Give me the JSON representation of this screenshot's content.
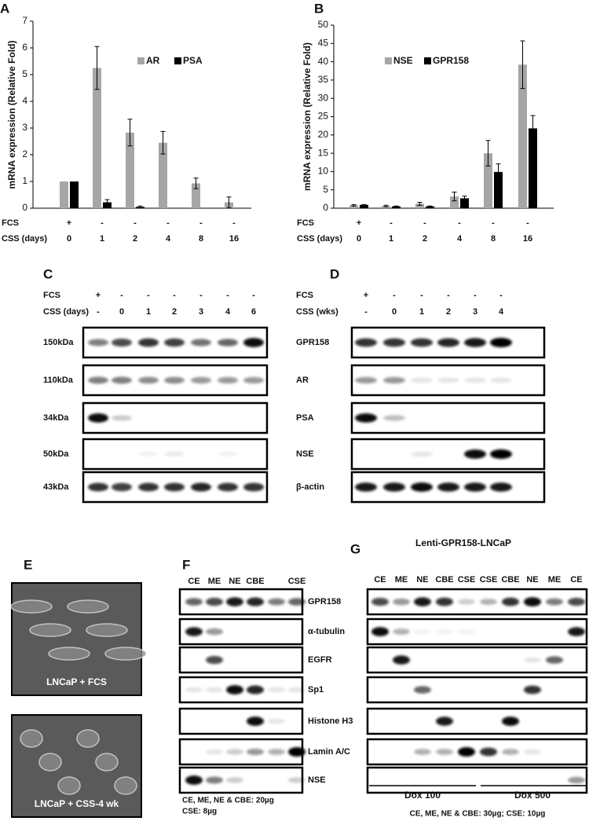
{
  "chart_data": [
    {
      "type": "bar",
      "label": "A",
      "y_label": "mRNA expression (Relative Fold)",
      "fcs_label": "FCS",
      "x_label": "CSS (days)",
      "fcs": [
        "+",
        "-",
        "-",
        "-",
        "-",
        "-"
      ],
      "categories": [
        "0",
        "1",
        "2",
        "4",
        "8",
        "16"
      ],
      "series": [
        {
          "name": "AR",
          "color": "#a6a6a6",
          "values": [
            1,
            5.25,
            2.83,
            2.45,
            0.93,
            0.22
          ],
          "errors": [
            0,
            0.8,
            0.5,
            0.42,
            0.2,
            0.2
          ]
        },
        {
          "name": "PSA",
          "color": "#000000",
          "values": [
            1,
            0.22,
            0.05,
            0,
            0,
            0
          ],
          "errors": [
            0,
            0.1,
            0.03,
            0,
            0,
            0
          ]
        }
      ],
      "ylim": [
        0,
        7
      ],
      "yticks": [
        0,
        1,
        2,
        3,
        4,
        5,
        6,
        7
      ]
    },
    {
      "type": "bar",
      "label": "B",
      "y_label": "mRNA expression (Relative Fold)",
      "fcs_label": "FCS",
      "x_label": "CSS (days)",
      "fcs": [
        "+",
        "-",
        "-",
        "-",
        "-",
        "-"
      ],
      "categories": [
        "0",
        "1",
        "2",
        "4",
        "8",
        "16"
      ],
      "series": [
        {
          "name": "NSE",
          "color": "#a6a6a6",
          "values": [
            0.8,
            0.6,
            1.2,
            3.2,
            15,
            39.2
          ],
          "errors": [
            0.2,
            0.2,
            0.4,
            1.2,
            3.5,
            6.5
          ]
        },
        {
          "name": "GPR158",
          "color": "#000000",
          "values": [
            0.9,
            0.5,
            0.5,
            2.7,
            9.9,
            21.8
          ],
          "errors": [
            0.1,
            0.1,
            0.1,
            0.6,
            2.2,
            3.5
          ]
        }
      ],
      "ylim": [
        0,
        50
      ],
      "yticks": [
        0,
        5,
        10,
        15,
        20,
        25,
        30,
        35,
        40,
        45,
        50
      ]
    }
  ],
  "panel_c": {
    "label": "C",
    "fcs_label": "FCS",
    "css_label": "CSS (days)",
    "fcs": [
      "+",
      "-",
      "-",
      "-",
      "-",
      "-",
      "-"
    ],
    "css": [
      "-",
      "0",
      "1",
      "2",
      "3",
      "4",
      "6"
    ],
    "markers": [
      "150kDa",
      "110kDa",
      "34kDa",
      "50kDa",
      "43kDa"
    ]
  },
  "panel_d": {
    "label": "D",
    "fcs_label": "FCS",
    "css_label": "CSS (wks)",
    "fcs": [
      "+",
      "-",
      "-",
      "-",
      "-",
      "-"
    ],
    "css": [
      "-",
      "0",
      "1",
      "2",
      "3",
      "4"
    ],
    "proteins": [
      "GPR158",
      "AR",
      "PSA",
      "NSE",
      "β-actin"
    ]
  },
  "panel_e": {
    "label": "E",
    "captions": [
      "LNCaP + FCS",
      "LNCaP + CSS-4 wk"
    ]
  },
  "panel_f": {
    "label": "F",
    "lanes": [
      "CE",
      "ME",
      "NE",
      "CBE",
      "CSE"
    ],
    "proteins": [
      "GPR158",
      "α-tubulin",
      "EGFR",
      "Sp1",
      "Histone H3",
      "Lamin A/C",
      "NSE"
    ],
    "notes": [
      "CE, ME, NE & CBE: 20µg",
      "CSE: 8µg"
    ]
  },
  "panel_g": {
    "label": "G",
    "title": "Lenti-GPR158-LNCaP",
    "lanes": [
      "CE",
      "ME",
      "NE",
      "CBE",
      "CSE",
      "CSE",
      "CBE",
      "NE",
      "ME",
      "CE"
    ],
    "groups": [
      "Dox 100",
      "Dox 500"
    ],
    "note": "CE, ME, NE & CBE: 30µg; CSE: 10µg"
  }
}
